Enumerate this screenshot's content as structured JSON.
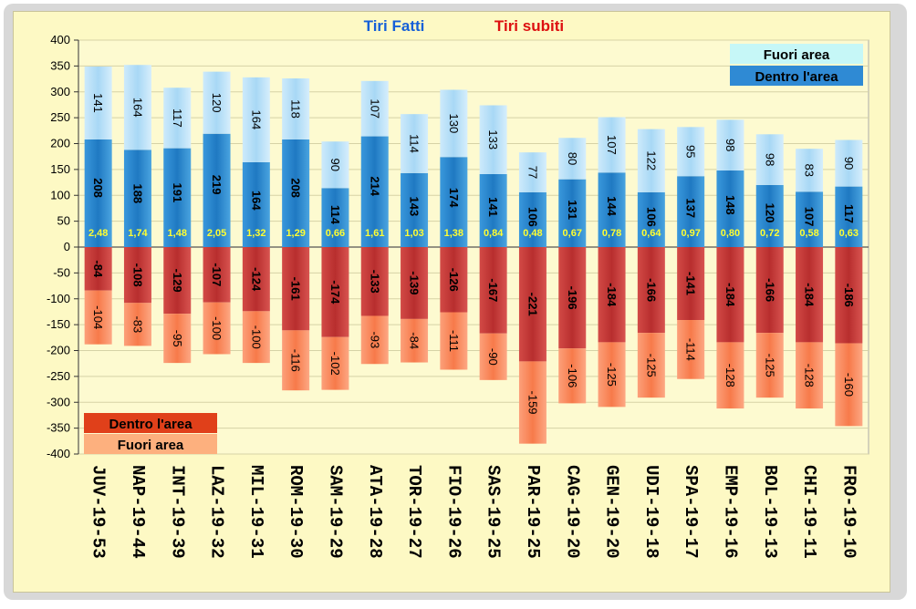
{
  "colors": {
    "fuori_fatti": "#a8d8f5",
    "dentro_fatti": "#2a86cc",
    "dentro_subiti": "#c83a38",
    "fuori_subiti": "#fb8a5c",
    "title_fatti": "#1560d8",
    "title_subiti": "#dd1010",
    "ratio_text": "#ffff33"
  },
  "chart_data": {
    "type": "bar",
    "title_fatti": "Tiri Fatti",
    "title_subiti": "Tiri subiti",
    "ylim": [
      -400,
      400
    ],
    "yticks": [
      400,
      350,
      300,
      250,
      200,
      150,
      100,
      50,
      0,
      -50,
      -100,
      -150,
      -200,
      -250,
      -300,
      -350,
      -400
    ],
    "legend_top": {
      "fuori": "Fuori area",
      "dentro": "Dentro l'area"
    },
    "legend_bottom": {
      "dentro": "Dentro l'area",
      "fuori": "Fuori area"
    },
    "categories": [
      "JUV-19-53",
      "NAP-19-44",
      "INT-19-39",
      "LAZ-19-32",
      "MIL-19-31",
      "ROM-19-30",
      "SAM-19-29",
      "ATA-19-28",
      "TOR-19-27",
      "FIO-19-26",
      "SAS-19-25",
      "PAR-19-25",
      "CAG-19-20",
      "GEN-19-20",
      "UDI-19-18",
      "SPA-19-17",
      "EMP-19-16",
      "BOL-19-13",
      "CHI-19-11",
      "FRO-19-10"
    ],
    "series": [
      {
        "name": "Dentro l'area (fatti)",
        "values": [
          208,
          188,
          191,
          219,
          164,
          208,
          114,
          214,
          143,
          174,
          141,
          106,
          131,
          144,
          106,
          137,
          148,
          120,
          107,
          117
        ]
      },
      {
        "name": "Fuori area (fatti)",
        "values": [
          141,
          164,
          117,
          120,
          164,
          118,
          90,
          107,
          114,
          130,
          133,
          77,
          80,
          107,
          122,
          95,
          98,
          98,
          83,
          90
        ]
      },
      {
        "name": "Dentro l'area (subiti)",
        "values": [
          -84,
          -108,
          -129,
          -107,
          -124,
          -161,
          -174,
          -133,
          -139,
          -126,
          -167,
          -221,
          -196,
          -184,
          -166,
          -141,
          -184,
          -166,
          -184,
          -186
        ]
      },
      {
        "name": "Fuori area (subiti)",
        "values": [
          -104,
          -83,
          -95,
          -100,
          -100,
          -116,
          -102,
          -93,
          -84,
          -111,
          -90,
          -159,
          -106,
          -125,
          -125,
          -114,
          -128,
          -125,
          -128,
          -160
        ]
      }
    ],
    "ratios": [
      "2,48",
      "1,74",
      "1,48",
      "2,05",
      "1,32",
      "1,29",
      "0,66",
      "1,61",
      "1,03",
      "1,38",
      "0,84",
      "0,48",
      "0,67",
      "0,78",
      "0,64",
      "0,97",
      "0,80",
      "0,72",
      "0,58",
      "0,63"
    ]
  }
}
